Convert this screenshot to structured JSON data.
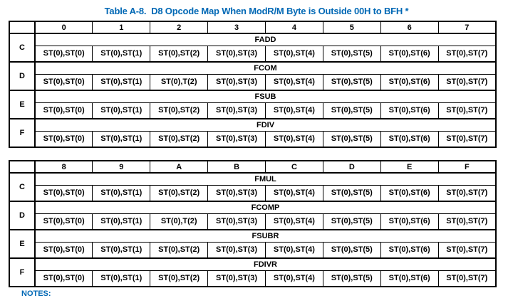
{
  "page": {
    "title": "Table A-8.  D8 Opcode Map When ModR/M Byte is Outside 00H to BFH *",
    "notes_label": "NOTES:"
  },
  "colors": {
    "heading_blue": "#0068b5",
    "table_border": "#000000",
    "background": "#ffffff"
  },
  "tables": [
    {
      "columns": [
        "0",
        "1",
        "2",
        "3",
        "4",
        "5",
        "6",
        "7"
      ],
      "rows": [
        {
          "label": "C",
          "mnemonic": "FADD",
          "operands": [
            "ST(0),ST(0)",
            "ST(0),ST(1)",
            "ST(0),ST(2)",
            "ST(0),ST(3)",
            "ST(0),ST(4)",
            "ST(0),ST(5)",
            "ST(0),ST(6)",
            "ST(0),ST(7)"
          ]
        },
        {
          "label": "D",
          "mnemonic": "FCOM",
          "operands": [
            "ST(0),ST(0)",
            "ST(0),ST(1)",
            "ST(0),T(2)",
            "ST(0),ST(3)",
            "ST(0),ST(4)",
            "ST(0),ST(5)",
            "ST(0),ST(6)",
            "ST(0),ST(7)"
          ]
        },
        {
          "label": "E",
          "mnemonic": "FSUB",
          "operands": [
            "ST(0),ST(0)",
            "ST(0),ST(1)",
            "ST(0),ST(2)",
            "ST(0),ST(3)",
            "ST(0),ST(4)",
            "ST(0),ST(5)",
            "ST(0),ST(6)",
            "ST(0),ST(7)"
          ]
        },
        {
          "label": "F",
          "mnemonic": "FDIV",
          "operands": [
            "ST(0),ST(0)",
            "ST(0),ST(1)",
            "ST(0),ST(2)",
            "ST(0),ST(3)",
            "ST(0),ST(4)",
            "ST(0),ST(5)",
            "ST(0),ST(6)",
            "ST(0),ST(7)"
          ]
        }
      ]
    },
    {
      "columns": [
        "8",
        "9",
        "A",
        "B",
        "C",
        "D",
        "E",
        "F"
      ],
      "rows": [
        {
          "label": "C",
          "mnemonic": "FMUL",
          "operands": [
            "ST(0),ST(0)",
            "ST(0),ST(1)",
            "ST(0),ST(2)",
            "ST(0),ST(3)",
            "ST(0),ST(4)",
            "ST(0),ST(5)",
            "ST(0),ST(6)",
            "ST(0),ST(7)"
          ]
        },
        {
          "label": "D",
          "mnemonic": "FCOMP",
          "operands": [
            "ST(0),ST(0)",
            "ST(0),ST(1)",
            "ST(0),T(2)",
            "ST(0),ST(3)",
            "ST(0),ST(4)",
            "ST(0),ST(5)",
            "ST(0),ST(6)",
            "ST(0),ST(7)"
          ]
        },
        {
          "label": "E",
          "mnemonic": "FSUBR",
          "operands": [
            "ST(0),ST(0)",
            "ST(0),ST(1)",
            "ST(0),ST(2)",
            "ST(0),ST(3)",
            "ST(0),ST(4)",
            "ST(0),ST(5)",
            "ST(0),ST(6)",
            "ST(0),ST(7)"
          ]
        },
        {
          "label": "F",
          "mnemonic": "FDIVR",
          "operands": [
            "ST(0),ST(0)",
            "ST(0),ST(1)",
            "ST(0),ST(2)",
            "ST(0),ST(3)",
            "ST(0),ST(4)",
            "ST(0),ST(5)",
            "ST(0),ST(6)",
            "ST(0),ST(7)"
          ]
        }
      ]
    }
  ]
}
